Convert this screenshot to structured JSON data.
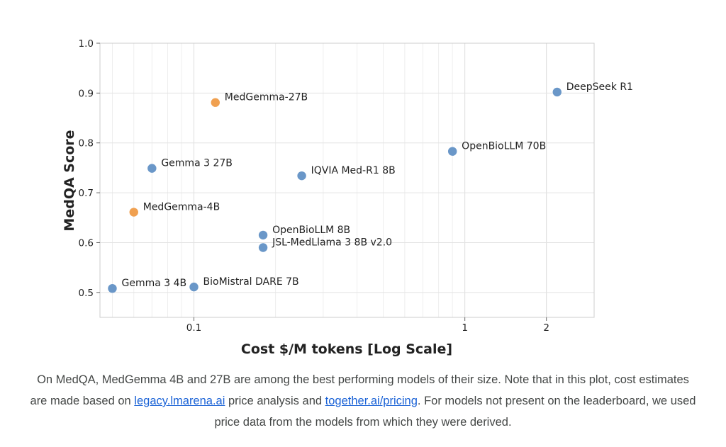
{
  "chart_data": {
    "type": "scatter",
    "xscale": "log",
    "xlim": [
      0.045,
      3.0
    ],
    "ylim": [
      0.45,
      1.0
    ],
    "xlabel": "Cost $/M tokens [Log Scale]",
    "ylabel": "MedQA Score",
    "grid": true,
    "yticks": [
      {
        "v": 0.5,
        "label": "0.5"
      },
      {
        "v": 0.6,
        "label": "0.6"
      },
      {
        "v": 0.7,
        "label": "0.7"
      },
      {
        "v": 0.8,
        "label": "0.8"
      },
      {
        "v": 0.9,
        "label": "0.9"
      },
      {
        "v": 1.0,
        "label": "1.0"
      }
    ],
    "xticks": [
      {
        "v": 0.1,
        "label": "0.1"
      },
      {
        "v": 1,
        "label": "1"
      },
      {
        "v": 2,
        "label": "2"
      }
    ],
    "xminor": [
      0.05,
      0.06,
      0.07,
      0.08,
      0.09,
      0.2,
      0.3,
      0.4,
      0.5,
      0.6,
      0.7,
      0.8,
      0.9,
      2,
      3
    ],
    "colors": {
      "medgemma": "#f0a050",
      "other": "#6a97c8"
    },
    "points": [
      {
        "label": "DeepSeek R1",
        "x": 2.19,
        "y": 0.902,
        "group": "other"
      },
      {
        "label": "MedGemma-27B",
        "x": 0.12,
        "y": 0.881,
        "group": "medgemma"
      },
      {
        "label": "OpenBioLLM 70B",
        "x": 0.9,
        "y": 0.783,
        "group": "other"
      },
      {
        "label": "Gemma 3 27B",
        "x": 0.07,
        "y": 0.749,
        "group": "other"
      },
      {
        "label": "IQVIA Med-R1 8B",
        "x": 0.25,
        "y": 0.734,
        "group": "other"
      },
      {
        "label": "MedGemma-4B",
        "x": 0.06,
        "y": 0.661,
        "group": "medgemma"
      },
      {
        "label": "OpenBioLLM 8B",
        "x": 0.18,
        "y": 0.615,
        "group": "other"
      },
      {
        "label": "JSL-MedLlama 3 8B v2.0",
        "x": 0.18,
        "y": 0.59,
        "group": "other"
      },
      {
        "label": "Gemma 3 4B",
        "x": 0.05,
        "y": 0.508,
        "group": "other"
      },
      {
        "label": "BioMistral DARE 7B",
        "x": 0.1,
        "y": 0.511,
        "group": "other"
      }
    ]
  },
  "caption": {
    "part1": "On MedQA, MedGemma 4B and 27B are among the best performing models of their size. Note that in this plot, cost estimates are made based on ",
    "link1": "legacy.lmarena.ai",
    "part2": " price analysis and ",
    "link2": "together.ai/pricing",
    "part3": ". For models not present on the leaderboard, we used price data from the models from which they were derived."
  }
}
